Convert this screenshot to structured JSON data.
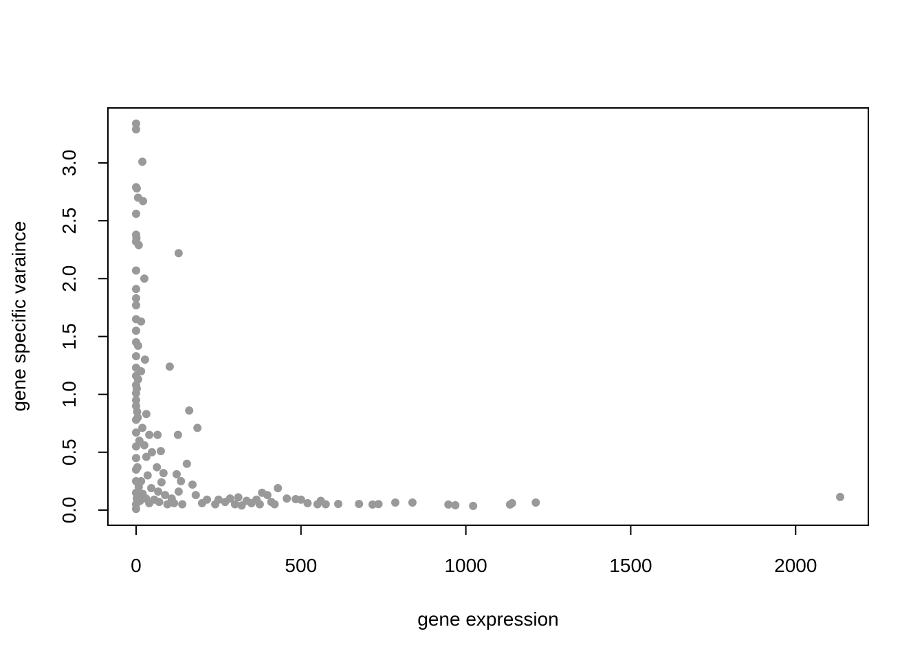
{
  "chart_data": {
    "type": "scatter",
    "x_label": "gene expression",
    "y_label": "gene specific varaince",
    "color": "#999999",
    "xlim": [
      -85.4,
      2220.4
    ],
    "ylim": [
      -0.131,
      3.475
    ],
    "xticks": [
      0,
      500,
      1000,
      1500,
      2000
    ],
    "yticks": [
      {
        "value": 0,
        "label": "0.0"
      },
      0.5,
      {
        "value": 1,
        "label": "1.0"
      },
      1.5,
      {
        "value": 2,
        "label": "2.0"
      },
      2.5,
      {
        "value": 3,
        "label": "3.0"
      }
    ],
    "x": [
      0,
      0,
      19,
      0,
      2,
      6,
      21,
      0,
      0,
      1,
      0,
      8,
      129,
      0,
      25,
      0,
      0,
      0,
      0,
      15,
      0,
      0,
      6,
      0,
      27,
      0,
      102,
      15,
      0,
      6,
      0,
      2,
      0,
      0,
      161,
      0,
      31,
      3,
      186,
      127,
      65,
      40,
      0,
      5,
      0,
      19,
      10,
      75,
      48,
      154,
      0,
      25,
      31,
      63,
      83,
      123,
      77,
      136,
      171,
      4,
      15,
      35,
      46,
      67,
      88,
      108,
      129,
      0,
      0,
      0,
      0,
      0,
      0,
      2,
      8,
      12,
      20,
      30,
      40,
      55,
      70,
      95,
      115,
      140,
      181,
      200,
      215,
      240,
      250,
      270,
      285,
      300,
      310,
      320,
      335,
      350,
      365,
      375,
      382,
      398,
      410,
      420,
      430,
      457,
      484,
      500,
      520,
      550,
      560,
      575,
      613,
      676,
      717,
      735,
      786,
      838,
      947,
      968,
      1022,
      1134,
      1140,
      1212,
      2135
    ],
    "y": [
      3.34,
      3.29,
      3.01,
      2.79,
      2.78,
      2.7,
      2.67,
      2.56,
      2.38,
      2.35,
      2.32,
      2.29,
      2.22,
      2.07,
      2.0,
      1.91,
      1.83,
      1.77,
      1.65,
      1.63,
      1.55,
      1.45,
      1.42,
      1.33,
      1.3,
      1.23,
      1.24,
      1.2,
      1.16,
      1.13,
      1.08,
      1.05,
      1.01,
      0.95,
      0.86,
      0.9,
      0.83,
      0.85,
      0.71,
      0.65,
      0.65,
      0.65,
      0.78,
      0.8,
      0.67,
      0.71,
      0.6,
      0.51,
      0.5,
      0.4,
      0.55,
      0.56,
      0.46,
      0.37,
      0.32,
      0.31,
      0.24,
      0.25,
      0.22,
      0.37,
      0.25,
      0.3,
      0.19,
      0.16,
      0.13,
      0.1,
      0.16,
      0.45,
      0.35,
      0.25,
      0.15,
      0.05,
      0.01,
      0.1,
      0.2,
      0.08,
      0.14,
      0.1,
      0.06,
      0.09,
      0.07,
      0.05,
      0.06,
      0.05,
      0.13,
      0.06,
      0.09,
      0.05,
      0.09,
      0.07,
      0.1,
      0.05,
      0.11,
      0.04,
      0.08,
      0.06,
      0.09,
      0.05,
      0.15,
      0.13,
      0.07,
      0.05,
      0.19,
      0.1,
      0.095,
      0.09,
      0.06,
      0.05,
      0.08,
      0.05,
      0.053,
      0.053,
      0.048,
      0.052,
      0.065,
      0.065,
      0.048,
      0.042,
      0.036,
      0.048,
      0.06,
      0.065,
      0.113
    ]
  }
}
